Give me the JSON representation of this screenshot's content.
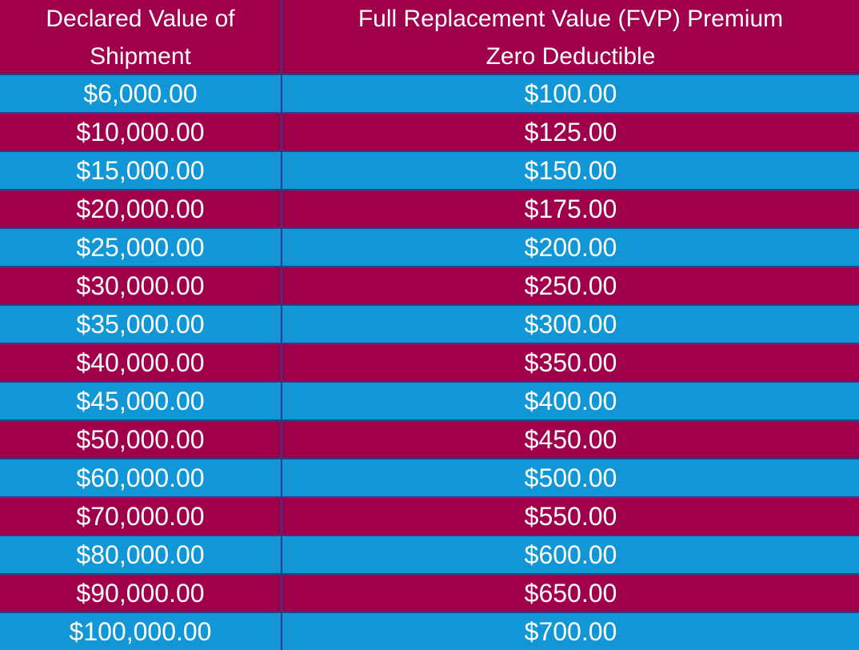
{
  "table": {
    "headers": {
      "col1_line1": "Declared Value of",
      "col1_line2": "Shipment",
      "col2_line1": "Full Replacement Value (FVP) Premium",
      "col2_line2": "Zero Deductible"
    },
    "rows": [
      {
        "declared": "$6,000.00",
        "premium": "$100.00"
      },
      {
        "declared": "$10,000.00",
        "premium": "$125.00"
      },
      {
        "declared": "$15,000.00",
        "premium": "$150.00"
      },
      {
        "declared": "$20,000.00",
        "premium": "$175.00"
      },
      {
        "declared": "$25,000.00",
        "premium": "$200.00"
      },
      {
        "declared": "$30,000.00",
        "premium": "$250.00"
      },
      {
        "declared": "$35,000.00",
        "premium": "$300.00"
      },
      {
        "declared": "$40,000.00",
        "premium": "$350.00"
      },
      {
        "declared": "$45,000.00",
        "premium": "$400.00"
      },
      {
        "declared": "$50,000.00",
        "premium": "$450.00"
      },
      {
        "declared": "$60,000.00",
        "premium": "$500.00"
      },
      {
        "declared": "$70,000.00",
        "premium": "$550.00"
      },
      {
        "declared": "$80,000.00",
        "premium": "$600.00"
      },
      {
        "declared": "$90,000.00",
        "premium": "$650.00"
      },
      {
        "declared": "$100,000.00",
        "premium": "$700.00"
      }
    ]
  },
  "colors": {
    "maroon": "#a0004b",
    "blue": "#1196d6",
    "divider": "#2a3f8a",
    "text": "#ffffff"
  }
}
